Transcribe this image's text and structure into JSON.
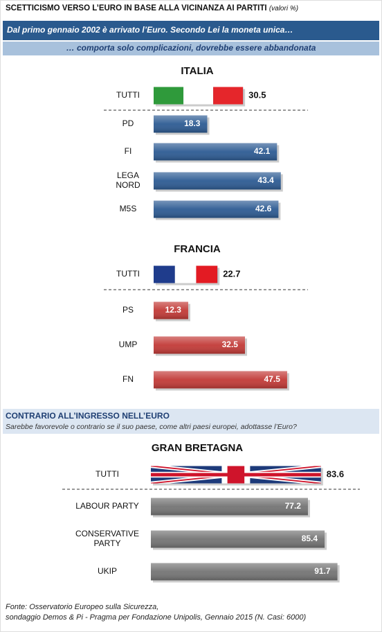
{
  "header": {
    "title": "SCETTICISMO VERSO L’EURO IN BASE ALLA VICINANZA AI PARTITI",
    "unit": "(valori %)",
    "question": "Dal primo gennaio 2002 è arrivato l’Euro. Secondo Lei la moneta unica…",
    "answer": "… comporta solo complicazioni, dovrebbe essere abbandonata"
  },
  "section": {
    "title": "CONTRARIO ALL’INGRESSO NELL’EURO",
    "question": "Sarebbe favorevole o contrario se il suo paese, come altri paesi europei, adottasse l’Euro?"
  },
  "source": [
    "Fonte: Osservatorio Europeo sulla Sicurezza,",
    "sondaggio Demos & Pi - Pragma per Fondazione Unipolis, Gennaio 2015 (N. Casi: 6000)"
  ],
  "chart_data": [
    {
      "type": "bar",
      "orientation": "horizontal",
      "title": "ITALIA",
      "categories": [
        "TUTTI",
        "PD",
        "FI",
        "LEGA\nNORD",
        "M5S"
      ],
      "values": [
        30.5,
        18.3,
        42.1,
        43.4,
        42.6
      ],
      "color": "#2d5b93",
      "xlim": [
        0,
        47
      ]
    },
    {
      "type": "bar",
      "orientation": "horizontal",
      "title": "FRANCIA",
      "categories": [
        "TUTTI",
        "PS",
        "UMP",
        "FN"
      ],
      "values": [
        22.7,
        12.3,
        32.5,
        47.5
      ],
      "color": "#c23a37",
      "xlim": [
        0,
        49
      ]
    },
    {
      "type": "bar",
      "orientation": "horizontal",
      "title": "GRAN BRETAGNA",
      "categories": [
        "TUTTI",
        "LABOUR PARTY",
        "CONSERVATIVE\nPARTY",
        "UKIP"
      ],
      "values": [
        83.6,
        77.2,
        85.4,
        91.7
      ],
      "color": "#747474",
      "xlim": [
        0,
        100
      ]
    }
  ]
}
